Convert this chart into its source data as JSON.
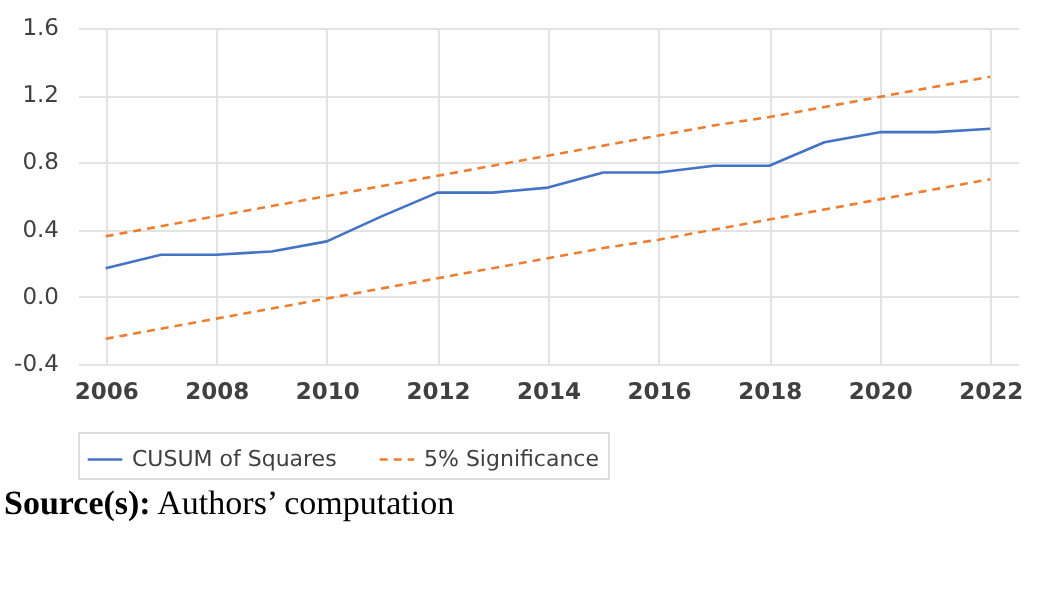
{
  "chart_data": {
    "type": "line",
    "x": [
      2006,
      2007,
      2008,
      2009,
      2010,
      2011,
      2012,
      2013,
      2014,
      2015,
      2016,
      2017,
      2018,
      2019,
      2020,
      2021,
      2022
    ],
    "series": [
      {
        "name": "CUSUM of Squares",
        "color": "#4472c4",
        "line_style": "solid",
        "values": [
          0.17,
          0.25,
          0.25,
          0.27,
          0.33,
          0.48,
          0.62,
          0.62,
          0.65,
          0.74,
          0.74,
          0.78,
          0.78,
          0.92,
          0.98,
          0.98,
          1.0
        ]
      },
      {
        "name": "5% Significance",
        "color": "#ed7d31",
        "line_style": "dashed",
        "values": [
          0.36,
          0.42,
          0.48,
          0.54,
          0.6,
          0.66,
          0.72,
          0.78,
          0.84,
          0.9,
          0.96,
          1.02,
          1.07,
          1.13,
          1.19,
          1.25,
          1.31
        ]
      },
      {
        "color": "#ed7d31",
        "line_style": "dashed",
        "values": [
          -0.25,
          -0.19,
          -0.13,
          -0.07,
          -0.01,
          0.05,
          0.11,
          0.17,
          0.23,
          0.29,
          0.34,
          0.4,
          0.46,
          0.52,
          0.58,
          0.64,
          0.7
        ]
      }
    ],
    "xlim": [
      2005.5,
      2022.5
    ],
    "xticks": [
      2006,
      2008,
      2010,
      2012,
      2014,
      2016,
      2018,
      2020,
      2022
    ],
    "ylim": [
      -0.4,
      1.6
    ],
    "yticks": [
      {
        "value": -0.4,
        "label": "-0.4"
      },
      {
        "value": 0,
        "label": "0.0"
      },
      {
        "value": 0.4,
        "label": "0.4"
      },
      {
        "value": 0.8,
        "label": "0.8"
      },
      {
        "value": 1.2,
        "label": "1.2"
      },
      {
        "value": 1.6,
        "label": "1.6"
      }
    ],
    "grid": true,
    "legend": "bottom",
    "annotations": [
      "Source(s): Authors’ computation"
    ]
  }
}
